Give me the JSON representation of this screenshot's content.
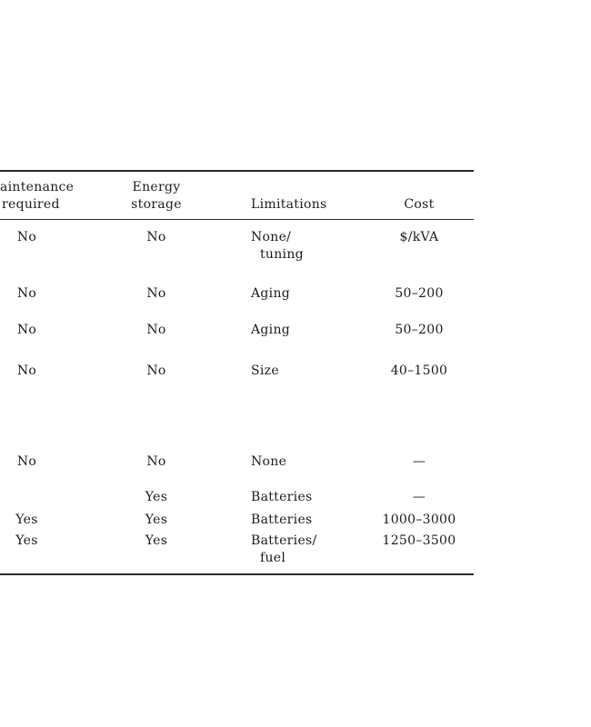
{
  "colors": {
    "background": "#ffffff",
    "text": "#1c1c1c",
    "rule": "#2a2a2a"
  },
  "table": {
    "header": {
      "col1_line1": "aintenance",
      "col1_line2": "required",
      "col2_line1": "Energy",
      "col2_line2": "storage",
      "col3": "Limitations",
      "col4": "Cost"
    },
    "rows": [
      {
        "maintenance": "No",
        "storage": "No",
        "limitations": "None/",
        "limitations_line2": "tuning",
        "cost": "$/kVA"
      },
      {
        "maintenance": "No",
        "storage": "No",
        "limitations": "Aging",
        "limitations_line2": "",
        "cost": "50–200"
      },
      {
        "maintenance": "No",
        "storage": "No",
        "limitations": "Aging",
        "limitations_line2": "",
        "cost": "50–200"
      },
      {
        "maintenance": "No",
        "storage": "No",
        "limitations": "Size",
        "limitations_line2": "",
        "cost": "40–1500"
      },
      {
        "maintenance": "No",
        "storage": "No",
        "limitations": "None",
        "limitations_line2": "",
        "cost": "—"
      },
      {
        "maintenance": "",
        "storage": "Yes",
        "limitations": "Batteries",
        "limitations_line2": "",
        "cost": "—"
      },
      {
        "maintenance": "Yes",
        "storage": "Yes",
        "limitations": "Batteries",
        "limitations_line2": "",
        "cost": "1000–3000"
      },
      {
        "maintenance": "Yes",
        "storage": "Yes",
        "limitations": "Batteries/",
        "limitations_line2": "fuel",
        "cost": "1250–3500"
      }
    ]
  }
}
